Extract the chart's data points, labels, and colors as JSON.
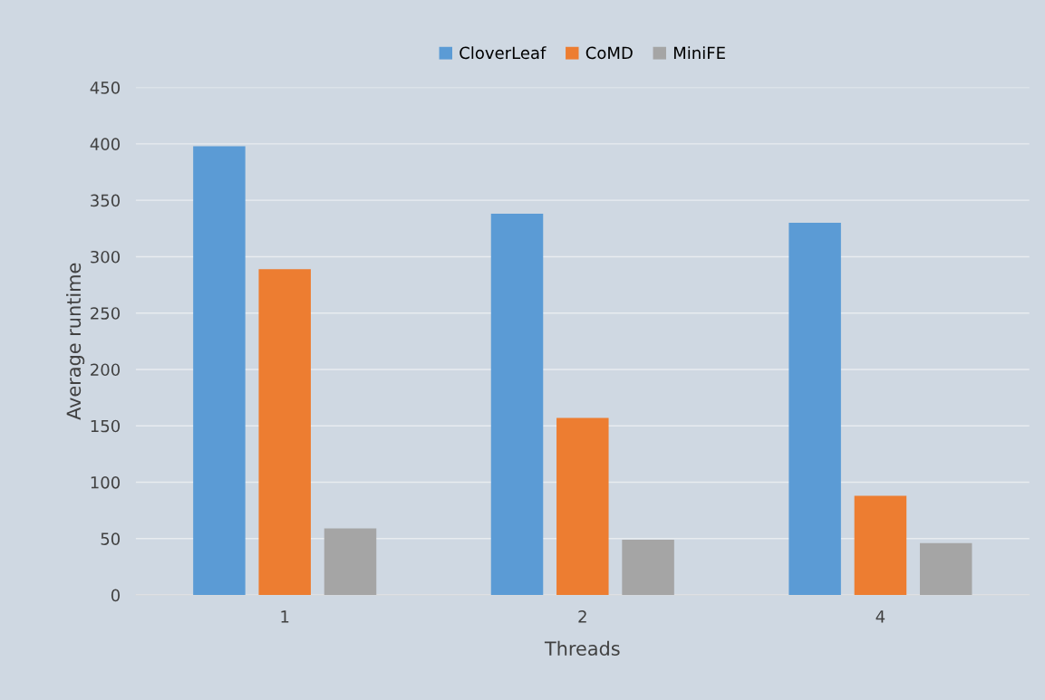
{
  "chart_data": {
    "type": "bar",
    "xlabel": "Threads",
    "ylabel": "Average runtime",
    "categories": [
      "1",
      "2",
      "4"
    ],
    "series": [
      {
        "name": "CloverLeaf",
        "color": "#5b9bd5",
        "values": [
          398,
          338,
          330
        ]
      },
      {
        "name": "CoMD",
        "color": "#ed7d31",
        "values": [
          289,
          157,
          88
        ]
      },
      {
        "name": "MiniFE",
        "color": "#a5a5a5",
        "values": [
          59,
          49,
          46
        ]
      }
    ],
    "ylim": [
      0,
      450
    ],
    "yticks": [
      0,
      50,
      100,
      150,
      200,
      250,
      300,
      350,
      400,
      450
    ],
    "grid": "y",
    "legend": "top"
  }
}
